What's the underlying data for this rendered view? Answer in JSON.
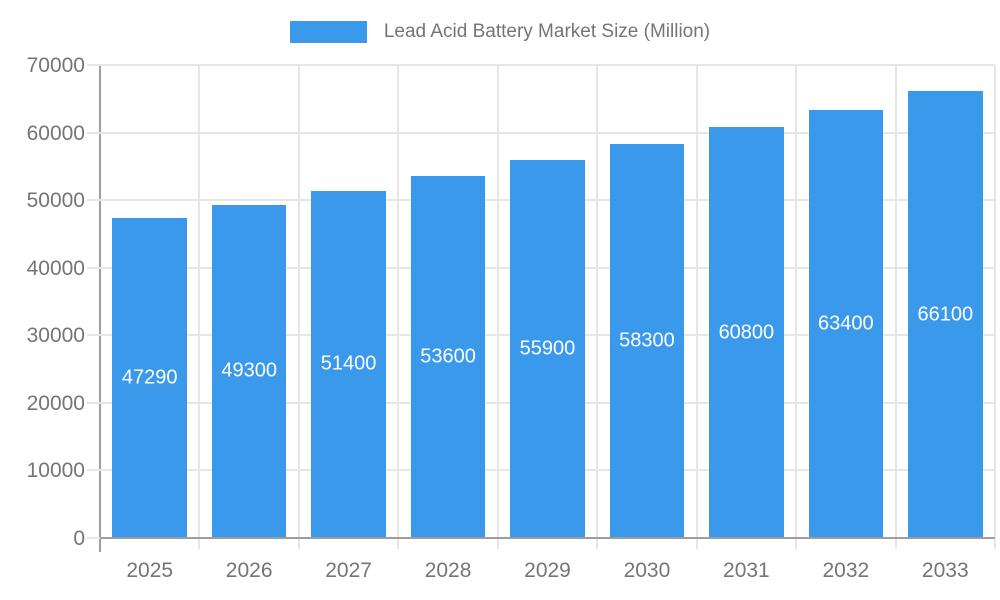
{
  "legend": {
    "label": "Lead Acid Battery Market Size (Million)",
    "swatch_icon": "blue-rect-swatch"
  },
  "chart_data": {
    "type": "bar",
    "title": "Lead Acid Battery Market Size (Million)",
    "categories": [
      "2025",
      "2026",
      "2027",
      "2028",
      "2029",
      "2030",
      "2031",
      "2032",
      "2033"
    ],
    "series": [
      {
        "name": "Lead Acid Battery Market Size (Million)",
        "values": [
          47290,
          49300,
          51400,
          53600,
          55900,
          58300,
          60800,
          63400,
          66100
        ]
      }
    ],
    "bar_labels": [
      "47290",
      "49300",
      "51400",
      "53600",
      "55900",
      "58300",
      "60800",
      "63400",
      "66100"
    ],
    "xlabel": "",
    "ylabel": "",
    "ylim": [
      0,
      70000
    ],
    "ytick_interval": 10000,
    "ytick_labels": [
      "0",
      "10000",
      "20000",
      "30000",
      "40000",
      "50000",
      "60000",
      "70000"
    ],
    "grid": true,
    "legend_position": "top-center",
    "bar_label_position": "inside-center"
  },
  "colors": {
    "bar": "#3B99EC",
    "bar_label": "#FFFFFF",
    "axis_text": "#757575",
    "grid": "#E6E6E6",
    "axis_line": "#9E9E9E",
    "background": "#FFFFFF"
  }
}
